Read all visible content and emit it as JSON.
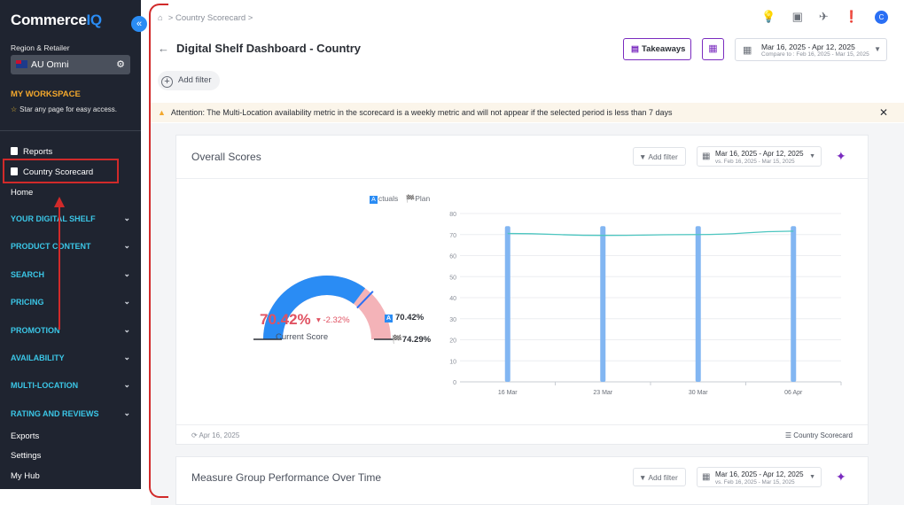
{
  "sidebar": {
    "logo_main": "Commerce",
    "logo_accent": "IQ",
    "region_label": "Region & Retailer",
    "region_value": "AU Omni",
    "workspace_title": "MY WORKSPACE",
    "workspace_hint": "Star any page for easy access.",
    "items": [
      {
        "label": "Reports",
        "type": "link"
      },
      {
        "label": "Country Scorecard",
        "type": "link"
      },
      {
        "label": "Home",
        "type": "plain"
      },
      {
        "label": "YOUR DIGITAL SHELF",
        "type": "section"
      },
      {
        "label": "PRODUCT CONTENT",
        "type": "section"
      },
      {
        "label": "SEARCH",
        "type": "section"
      },
      {
        "label": "PRICING",
        "type": "section"
      },
      {
        "label": "PROMOTION",
        "type": "section"
      },
      {
        "label": "AVAILABILITY",
        "type": "section"
      },
      {
        "label": "MULTI-LOCATION",
        "type": "section"
      },
      {
        "label": "RATING AND REVIEWS",
        "type": "section"
      },
      {
        "label": "Exports",
        "type": "plain"
      },
      {
        "label": "Settings",
        "type": "plain"
      },
      {
        "label": "My Hub",
        "type": "plain"
      }
    ]
  },
  "header": {
    "breadcrumb": "Country Scorecard",
    "title": "Digital Shelf Dashboard - Country",
    "takeaways_label": "Takeaways",
    "date_main": "Mar 16, 2025 - Apr 12, 2025",
    "date_compare": "Compare to : Feb 16, 2025 - Mar 15, 2025",
    "add_filter": "Add filter",
    "avatar_initial": "C"
  },
  "alert": {
    "text": "Attention: The Multi-Location availability metric in the scorecard is a weekly metric and will not appear if the selected period is less than 7 days"
  },
  "card1": {
    "title": "Overall Scores",
    "filter_label": "Add filter",
    "date_main": "Mar 16, 2025 - Apr 12, 2025",
    "date_compare": "vs. Feb 16, 2025 - Mar 15, 2025",
    "legend_actuals": "ctuals",
    "legend_plan": "Plan",
    "legend_marker": "A",
    "score_value": "70.42%",
    "score_delta": "-2.32%",
    "score_label": "Current Score",
    "actual_value": "70.42%",
    "plan_value": "74.29%",
    "footer_date": "Apr 16, 2025",
    "footer_source": "Country Scorecard"
  },
  "card2": {
    "title": "Measure Group Performance Over Time",
    "filter_label": "Add filter",
    "date_main": "Mar 16, 2025 - Apr 12, 2025",
    "date_compare": "vs. Feb 16, 2025 - Mar 15, 2025"
  },
  "colors": {
    "sidebar_bg": "#1f2430",
    "accent_blue": "#2a8cf4",
    "section_cyan": "#3bc6e6",
    "workspace_orange": "#f2a72c",
    "purple": "#7a2bbf",
    "negative_red": "#e05262",
    "bar_blue": "#82b6f2",
    "line_teal": "#4dc6c0"
  },
  "chart_data": {
    "type": "bar",
    "categories": [
      "16 Mar",
      "23 Mar",
      "30 Mar",
      "06 Apr"
    ],
    "series": [
      {
        "values": [
          74,
          74,
          74,
          74
        ]
      },
      {
        "values": [
          70.5,
          69.6,
          70.0,
          71.6
        ]
      }
    ],
    "ylim": [
      0,
      80
    ],
    "yticks": [
      0,
      10,
      20,
      30,
      40,
      50,
      60,
      70,
      80
    ],
    "grid": true,
    "gauge": {
      "value": 70.42,
      "plan": 74.29,
      "max": 100
    }
  }
}
